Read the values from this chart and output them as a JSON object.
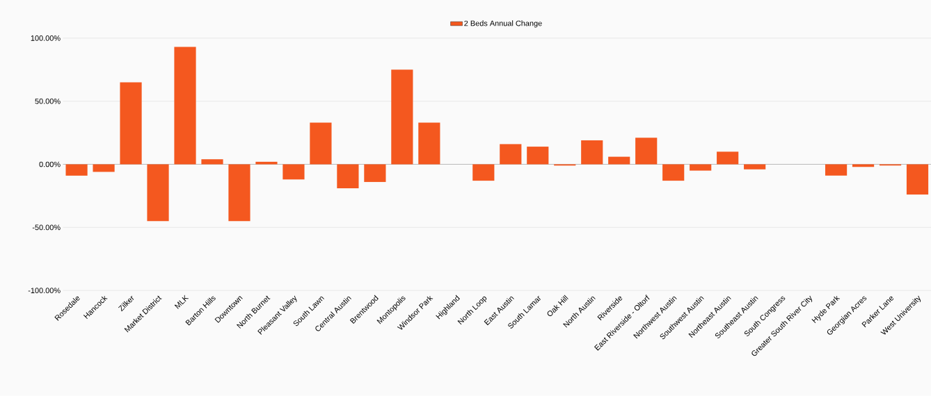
{
  "chart_data": {
    "type": "bar",
    "categories": [
      "Rosedale",
      "Hancock",
      "Zilker",
      "Market District",
      "MLK",
      "Barton Hills",
      "Downtown",
      "North Burnet",
      "Pleasant Valley",
      "South Lawn",
      "Central Austin",
      "Brentwood",
      "Montopolis",
      "Windsor Park",
      "Highland",
      "North Loop",
      "East Austin",
      "South Lamar",
      "Oak Hill",
      "North Austin",
      "Riverside",
      "East Riverside - Oltorf",
      "Northwest Austin",
      "Southwest Austin",
      "Northeast Austin",
      "Southeast Austin",
      "South Congress",
      "Greater South River City",
      "Hyde Park",
      "Georgian Acres",
      "Parker Lane",
      "West University"
    ],
    "series": [
      {
        "name": "2 Beds Annual Change",
        "color": "#f4581f",
        "values": [
          -9,
          -6,
          65,
          -45,
          93,
          4,
          -45,
          2,
          -12,
          33,
          -19,
          -14,
          75,
          33,
          0,
          -13,
          16,
          14,
          -1,
          19,
          6,
          21,
          -13,
          -5,
          10,
          -4,
          0,
          0,
          -9,
          -2,
          -1,
          -24
        ]
      }
    ],
    "ylim": [
      -100,
      100
    ],
    "yticks": [
      {
        "value": -100,
        "label": "-100.00%"
      },
      {
        "value": -50,
        "label": "-50.00%"
      },
      {
        "value": 0,
        "label": "0.00%"
      },
      {
        "value": 50,
        "label": "50.00%"
      },
      {
        "value": 100,
        "label": "100.00%"
      }
    ],
    "grid": "y",
    "legend": "top"
  }
}
